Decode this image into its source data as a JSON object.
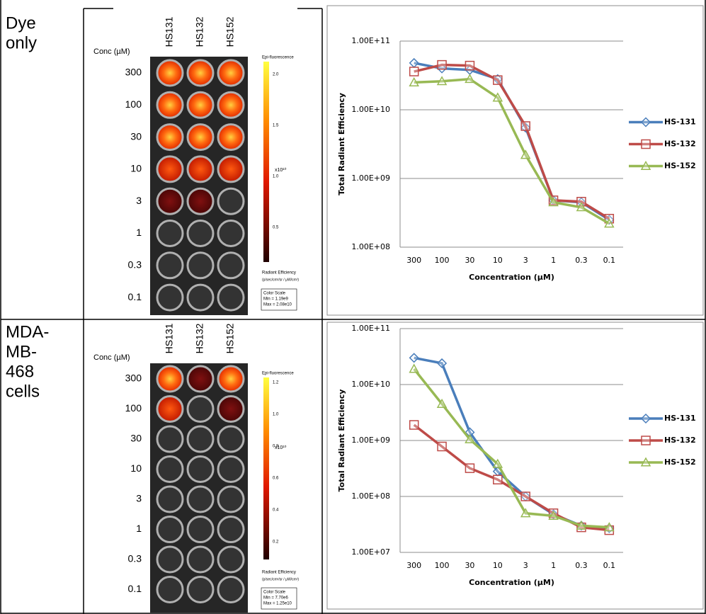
{
  "row_labels": [
    [
      "Dye",
      "only"
    ],
    [
      "MDA-",
      "MB-",
      "468",
      "cells"
    ]
  ],
  "plates": [
    {
      "columns": [
        "HS131",
        "HS132",
        "HS152"
      ],
      "conc_header": "Conc (µM)",
      "concentrations": [
        "300",
        "100",
        "30",
        "10",
        "3",
        "1",
        "0.3",
        "0.1"
      ],
      "colorbar": {
        "title": "Epi-fluorescence",
        "ticks": [
          "2.0",
          "1.5",
          "1.0",
          "0.5"
        ],
        "exponent": "x10¹⁰",
        "unit_title": "Radiant Efficiency",
        "unit": "(p/sec/cm²/sr / µW/cm²)",
        "scale_title": "Color Scale",
        "min": "Min = 1.19e9",
        "max": "Max = 2.08e10"
      }
    },
    {
      "columns": [
        "HS131",
        "HS132",
        "HS152"
      ],
      "conc_header": "Conc (µM)",
      "concentrations": [
        "300",
        "100",
        "30",
        "10",
        "3",
        "1",
        "0.3",
        "0.1"
      ],
      "colorbar": {
        "title": "Epi-fluorescence",
        "ticks": [
          "1.2",
          "1.0",
          "0.8",
          "0.6",
          "0.4",
          "0.2"
        ],
        "exponent": "x10¹⁰",
        "unit_title": "Radiant Efficiency",
        "unit": "(p/sec/cm²/sr / µW/cm²)",
        "scale_title": "Color Scale",
        "min": "Min = 7.70e6",
        "max": "Max = 1.25e10"
      }
    }
  ],
  "chart_data": [
    {
      "type": "line",
      "x_label": "Concentration (µM)",
      "y_label": "Total Radiant Efficiency",
      "categories": [
        "300",
        "100",
        "30",
        "10",
        "3",
        "1",
        "0.3",
        "0.1"
      ],
      "series": [
        {
          "name": "HS-131",
          "color": "#4a7ebb",
          "marker": "diamond",
          "values": [
            48000000000,
            40000000000,
            38000000000,
            28000000000,
            5500000000,
            480000000,
            450000000,
            250000000
          ]
        },
        {
          "name": "HS-132",
          "color": "#be4b48",
          "marker": "square",
          "values": [
            36000000000,
            45000000000,
            44000000000,
            27000000000,
            5800000000,
            480000000,
            460000000,
            260000000
          ]
        },
        {
          "name": "HS-152",
          "color": "#98b954",
          "marker": "triangle",
          "values": [
            25000000000,
            26000000000,
            28000000000,
            15000000000,
            2200000000,
            450000000,
            380000000,
            220000000
          ]
        }
      ],
      "ylim": [
        100000000,
        100000000000
      ],
      "log_scale": true,
      "grid": true,
      "legend": "right",
      "yticks": [
        {
          "value": 100000000,
          "label": "1.00E+08"
        },
        {
          "value": 1000000000,
          "label": "1.00E+09"
        },
        {
          "value": 10000000000,
          "label": "1.00E+10"
        },
        {
          "value": 100000000000,
          "label": "1.00E+11"
        }
      ]
    },
    {
      "type": "line",
      "x_label": "Concentration (µM)",
      "y_label": "Total Radiant Efficiency",
      "categories": [
        "300",
        "100",
        "30",
        "10",
        "3",
        "1",
        "0.3",
        "0.1"
      ],
      "series": [
        {
          "name": "HS-131",
          "color": "#4a7ebb",
          "marker": "diamond",
          "values": [
            30000000000,
            24000000000,
            1400000000,
            280000000,
            100000000,
            48000000,
            30000000,
            27000000
          ]
        },
        {
          "name": "HS-132",
          "color": "#be4b48",
          "marker": "square",
          "values": [
            1900000000,
            780000000,
            320000000,
            200000000,
            100000000,
            50000000,
            28000000,
            25000000
          ]
        },
        {
          "name": "HS-152",
          "color": "#98b954",
          "marker": "triangle",
          "values": [
            19000000000,
            4500000000,
            1050000000,
            380000000,
            50000000,
            45000000,
            30000000,
            28000000
          ]
        }
      ],
      "ylim": [
        10000000,
        100000000000
      ],
      "log_scale": true,
      "grid": true,
      "legend": "right",
      "yticks": [
        {
          "value": 10000000,
          "label": "1.00E+07"
        },
        {
          "value": 100000000,
          "label": "1.00E+08"
        },
        {
          "value": 1000000000,
          "label": "1.00E+09"
        },
        {
          "value": 10000000000,
          "label": "1.00E+10"
        },
        {
          "value": 100000000000,
          "label": "1.00E+11"
        }
      ]
    }
  ]
}
